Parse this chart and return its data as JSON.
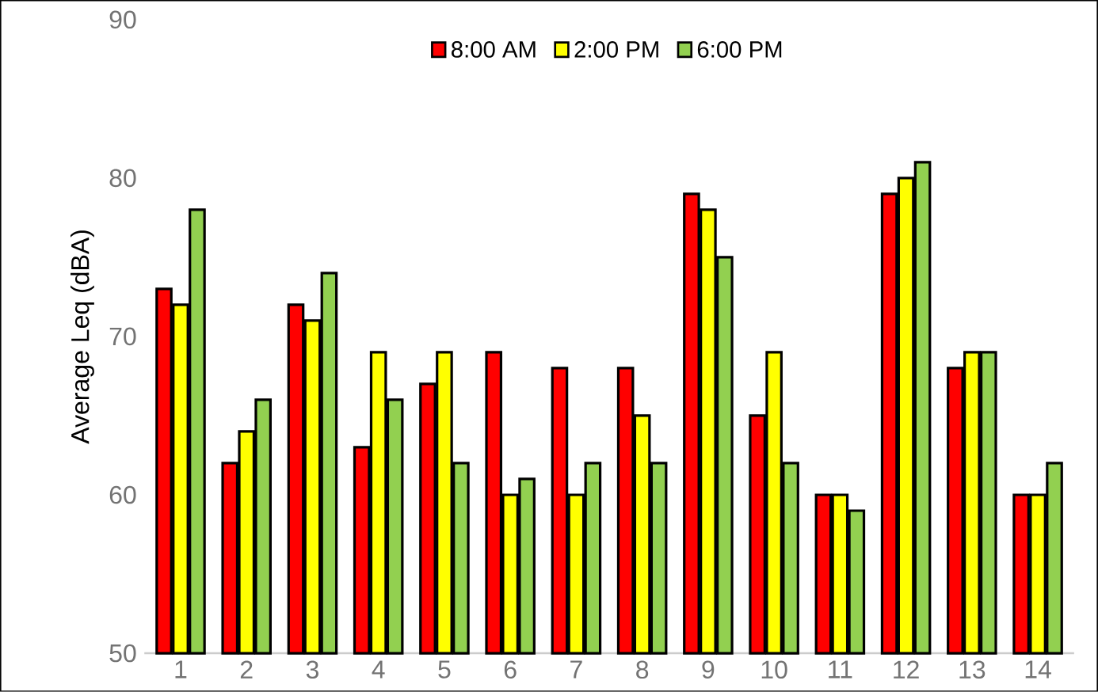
{
  "chart_data": {
    "type": "bar",
    "ylabel": "Average Leq (dBA)",
    "categories": [
      "1",
      "2",
      "3",
      "4",
      "5",
      "6",
      "7",
      "8",
      "9",
      "10",
      "11",
      "12",
      "13",
      "14"
    ],
    "series": [
      {
        "name": "8:00 AM",
        "color": "#ff0000",
        "values": [
          73,
          62,
          72,
          63,
          67,
          69,
          68,
          68,
          79,
          65,
          60,
          79,
          68,
          60
        ]
      },
      {
        "name": "2:00 PM",
        "color": "#ffff00",
        "values": [
          72,
          64,
          71,
          69,
          69,
          60,
          60,
          65,
          78,
          69,
          60,
          80,
          69,
          60
        ]
      },
      {
        "name": "6:00 PM",
        "color": "#92d050",
        "values": [
          78,
          66,
          74,
          66,
          62,
          61,
          62,
          62,
          75,
          62,
          59,
          81,
          69,
          62
        ]
      }
    ],
    "ylim": [
      50,
      90
    ],
    "yticks": [
      50,
      60,
      70,
      80,
      90
    ],
    "grid": false,
    "legend": "top"
  }
}
